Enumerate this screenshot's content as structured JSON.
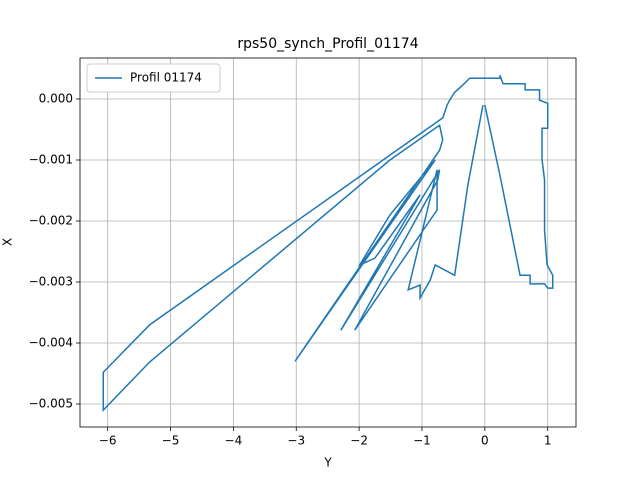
{
  "chart_data": {
    "type": "line",
    "title": "rps50_synch_Profil_01174",
    "x_label": "Y",
    "y_label": "X",
    "x": [
      0,
      0.24,
      0.56,
      0.72,
      0.72,
      0.95,
      1.0,
      1.08,
      1.08,
      0.99,
      0.95,
      0.95,
      0.91,
      0.91,
      1.0,
      1.0,
      0.87,
      0.87,
      0.64,
      0.64,
      0.29,
      0.24,
      0.24,
      -0.24,
      -0.37,
      -0.48,
      -0.56,
      -0.6,
      -0.67,
      -5.33,
      -6.07,
      -6.07,
      -5.33,
      -1.51,
      -0.72,
      -0.67,
      -0.72,
      -3.02,
      -0.79,
      -1.51,
      -1.99,
      -1.75,
      -1.03,
      -2.29,
      -0.72,
      -0.75,
      -2.07,
      -0.76,
      -0.76,
      -1.22,
      -1.03,
      -1.03,
      -0.87,
      -0.79,
      -0.48,
      -0.27,
      -0.03
    ],
    "series": [
      {
        "name": "Profil 01174",
        "color": "#1f77b4",
        "values": [
          -0.0001,
          -0.00125,
          -0.00289,
          -0.00289,
          -0.00303,
          -0.00303,
          -0.0031,
          -0.0031,
          -0.00289,
          -0.00272,
          -0.00215,
          -0.00133,
          -0.001,
          -0.00048,
          -0.00048,
          -7e-05,
          -2e-05,
          0.00015,
          0.00015,
          0.00025,
          0.00025,
          0.00039,
          0.00034,
          0.00034,
          0.00021,
          0.00011,
          -2e-05,
          -0.0001,
          -0.00031,
          -0.0037,
          -0.00448,
          -0.0051,
          -0.00431,
          -0.001,
          -0.00043,
          -0.00067,
          -0.00084,
          -0.0043,
          -0.001,
          -0.0019,
          -0.00272,
          -0.00261,
          -0.00157,
          -0.00379,
          -0.00116,
          -0.00133,
          -0.00379,
          -0.00182,
          -0.00116,
          -0.00313,
          -0.00305,
          -0.00326,
          -0.00297,
          -0.00272,
          -0.00289,
          -0.00141,
          -0.0001
        ]
      }
    ],
    "xlim": [
      -6.44,
      1.45
    ],
    "xticks": [
      {
        "value": -6,
        "label": "−6"
      },
      {
        "value": -5,
        "label": "−5"
      },
      {
        "value": -4,
        "label": "−4"
      },
      {
        "value": -3,
        "label": "−3"
      },
      {
        "value": -2,
        "label": "−2"
      },
      {
        "value": -1,
        "label": "−1"
      },
      0,
      1
    ],
    "ylim": [
      -0.005377,
      0.000672
    ],
    "yticks": [
      {
        "value": 0,
        "label": "0.000"
      },
      {
        "value": -0.001,
        "label": "−0.001"
      },
      {
        "value": -0.002,
        "label": "−0.002"
      },
      {
        "value": -0.003,
        "label": "−0.003"
      },
      {
        "value": -0.004,
        "label": "−0.004"
      },
      {
        "value": -0.005,
        "label": "−0.005"
      }
    ],
    "grid": true,
    "legend": "upper left"
  }
}
